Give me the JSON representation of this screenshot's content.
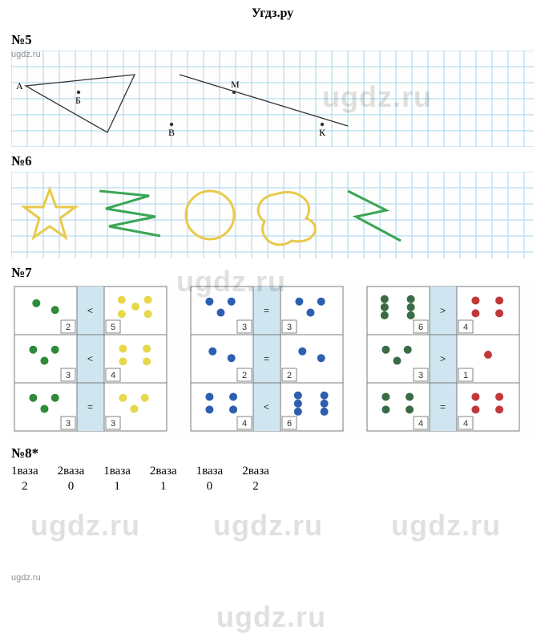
{
  "header": "Угдз.ру",
  "watermarks": {
    "big": "ugdz.ru",
    "small": "ugdz.ru"
  },
  "exercises": {
    "ex5": {
      "label": "№5",
      "points": {
        "A": "А",
        "B": "Б",
        "V": "В",
        "M": "М",
        "K": "К"
      }
    },
    "ex6": {
      "label": "№6"
    },
    "ex7": {
      "label": "№7",
      "panels": [
        {
          "leftColor": "#2e8b3a",
          "rightColor": "#e6d84a",
          "rows": [
            {
              "leftN": "2",
              "op": "<",
              "rightN": "5",
              "leftDots": 2,
              "rightDots": 5
            },
            {
              "leftN": "3",
              "op": "<",
              "rightN": "4",
              "leftDots": 3,
              "rightDots": 4
            },
            {
              "leftN": "3",
              "op": "=",
              "rightN": "3",
              "leftDots": 3,
              "rightDots": 3
            }
          ]
        },
        {
          "leftColor": "#2d5fb0",
          "rightColor": "#2d5fb0",
          "rows": [
            {
              "leftN": "3",
              "op": "=",
              "rightN": "3",
              "leftDots": 3,
              "rightDots": 3
            },
            {
              "leftN": "2",
              "op": "=",
              "rightN": "2",
              "leftDots": 2,
              "rightDots": 2
            },
            {
              "leftN": "4",
              "op": "<",
              "rightN": "6",
              "leftDots": 4,
              "rightDots": 6
            }
          ]
        },
        {
          "leftColor": "#3a6b45",
          "rightColor": "#c23838",
          "rows": [
            {
              "leftN": "6",
              "op": ">",
              "rightN": "4",
              "leftDots": 6,
              "rightDots": 4
            },
            {
              "leftN": "3",
              "op": ">",
              "rightN": "1",
              "leftDots": 3,
              "rightDots": 1
            },
            {
              "leftN": "4",
              "op": "=",
              "rightN": "4",
              "leftDots": 4,
              "rightDots": 4
            }
          ]
        }
      ]
    },
    "ex8": {
      "label": "№8*",
      "headers": [
        "1ваза",
        "2ваза",
        "1ваза",
        "2ваза",
        "1ваза",
        "2ваза"
      ],
      "values": [
        "2",
        "0",
        "1",
        "1",
        "0",
        "2"
      ]
    }
  },
  "colors": {
    "gridLine": "#a8d4ee",
    "triangleStroke": "#333333",
    "star": "#e8c94a",
    "green": "#3aa655",
    "orange": "#e8c94a"
  }
}
